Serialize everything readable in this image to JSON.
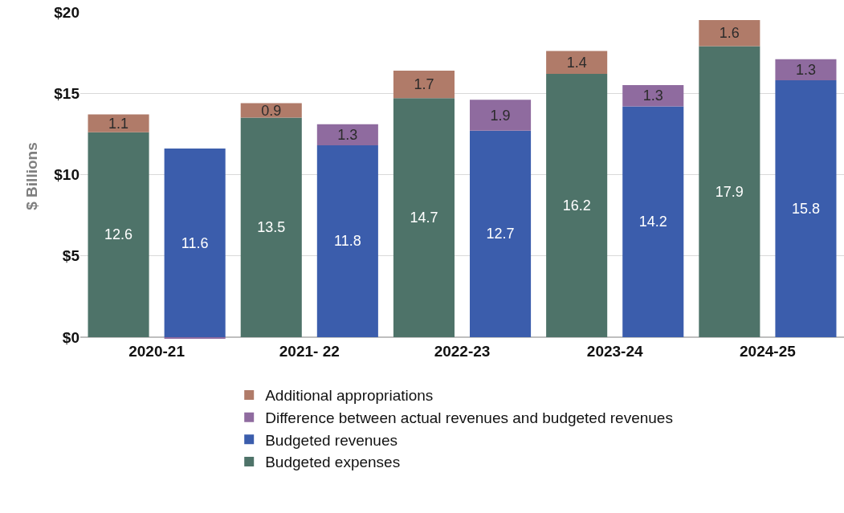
{
  "chart_data": {
    "type": "bar",
    "stacked": true,
    "ylabel": "$ Billions",
    "categories": [
      "2020-21",
      null,
      "2021- 22",
      null,
      "2022-23",
      null,
      "2023-24",
      null,
      "2024-25",
      null
    ],
    "series": [
      {
        "name": "Budgeted expenses",
        "color": "#4e7369",
        "values": [
          12.6,
          null,
          13.5,
          null,
          14.7,
          null,
          16.2,
          null,
          17.9,
          null
        ],
        "value_labels": [
          "12.6",
          null,
          "13.5",
          null,
          "14.7",
          null,
          "16.2",
          null,
          "17.9",
          null
        ]
      },
      {
        "name": "Additional appropriations",
        "color": "#b07b69",
        "values": [
          1.1,
          null,
          0.9,
          null,
          1.7,
          null,
          1.4,
          null,
          1.6,
          null
        ],
        "value_labels": [
          "1.1",
          null,
          "0.9",
          null,
          "1.7",
          null,
          "1.4",
          null,
          "1.6",
          null
        ]
      },
      {
        "name": "Budgeted revenues",
        "color": "#3b5dac",
        "values": [
          null,
          11.6,
          null,
          11.8,
          null,
          12.7,
          null,
          14.2,
          null,
          15.8
        ],
        "value_labels": [
          null,
          "11.6",
          null,
          "11.8",
          null,
          "12.7",
          null,
          "14.2",
          null,
          "15.8"
        ]
      },
      {
        "name": "Difference between actual revenues and budgeted revenues",
        "color": "#8f6b9f",
        "values": [
          null,
          -0.1,
          null,
          1.3,
          null,
          1.9,
          null,
          1.3,
          null,
          1.3
        ],
        "value_labels": [
          null,
          null,
          null,
          "1.3",
          null,
          "1.9",
          null,
          "1.3",
          null,
          "1.3"
        ]
      }
    ],
    "ylim": [
      -0.2,
      20
    ],
    "yticks": [
      {
        "value": 0,
        "label": "$0"
      },
      {
        "value": 5,
        "label": "$5"
      },
      {
        "value": 10,
        "label": "$10"
      },
      {
        "value": 15,
        "label": "$15"
      },
      {
        "value": 20,
        "label": "$20"
      }
    ],
    "grid": "y",
    "legend": "bottom"
  }
}
